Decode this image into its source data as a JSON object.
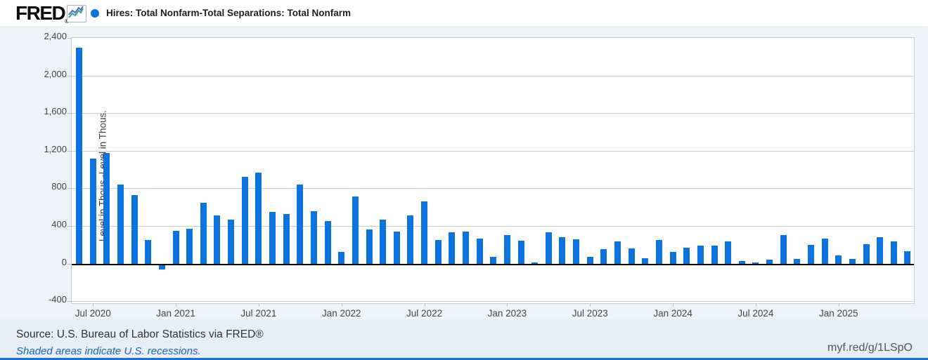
{
  "header": {
    "logo_text": "FRED",
    "registered_mark": "®",
    "legend_label": "Hires: Total Nonfarm-Total Separations: Total Nonfarm"
  },
  "footer": {
    "source_text": "Source: U.S. Bureau of Labor Statistics via FRED®",
    "recessions_note": "Shaded areas indicate U.S. recessions.",
    "short_url": "myf.red/g/1LSpO"
  },
  "colors": {
    "bar": "#0b74e0",
    "legend_dot": "#0b74e0",
    "grid": "#cdcdcd",
    "zero_line": "#000000",
    "plot_border": "#c2cbd8",
    "accent_strip": "#1b70d4",
    "link_blue": "#1565c6"
  },
  "chart_data": {
    "type": "bar",
    "title": "Hires: Total Nonfarm-Total Separations: Total Nonfarm",
    "ylabel": "Level in Thous.-Level in Thous.",
    "xlabel": "",
    "ylim": [
      -420,
      2400
    ],
    "yticks": [
      2400,
      2000,
      1600,
      1200,
      800,
      400,
      0,
      -400
    ],
    "ytick_labels": [
      "2,400",
      "2,000",
      "1,600",
      "1,200",
      "800",
      "400",
      "0",
      "-400"
    ],
    "xtick_labels": [
      "Jul 2020",
      "Jan 2021",
      "Jul 2021",
      "Jan 2022",
      "Jul 2022",
      "Jan 2023",
      "Jul 2023",
      "Jan 2024",
      "Jul 2024",
      "Jan 2025"
    ],
    "grid": true,
    "legend_position": "top-left",
    "x": [
      "Jun 2020",
      "Jul 2020",
      "Aug 2020",
      "Sep 2020",
      "Oct 2020",
      "Nov 2020",
      "Dec 2020",
      "Jan 2021",
      "Feb 2021",
      "Mar 2021",
      "Apr 2021",
      "May 2021",
      "Jun 2021",
      "Jul 2021",
      "Aug 2021",
      "Sep 2021",
      "Oct 2021",
      "Nov 2021",
      "Dec 2021",
      "Jan 2022",
      "Feb 2022",
      "Mar 2022",
      "Apr 2022",
      "May 2022",
      "Jun 2022",
      "Jul 2022",
      "Aug 2022",
      "Sep 2022",
      "Oct 2022",
      "Nov 2022",
      "Dec 2022",
      "Jan 2023",
      "Feb 2023",
      "Mar 2023",
      "Apr 2023",
      "May 2023",
      "Jun 2023",
      "Jul 2023",
      "Aug 2023",
      "Sep 2023",
      "Oct 2023",
      "Nov 2023",
      "Dec 2023",
      "Jan 2024",
      "Feb 2024",
      "Mar 2024",
      "Apr 2024",
      "May 2024",
      "Jun 2024",
      "Jul 2024",
      "Aug 2024",
      "Sep 2024",
      "Oct 2024",
      "Nov 2024",
      "Dec 2024",
      "Jan 2025",
      "Feb 2025",
      "Mar 2025",
      "Apr 2025",
      "May 2025",
      "Jun 2025"
    ],
    "values": [
      2295,
      1120,
      1180,
      840,
      730,
      255,
      -45,
      345,
      370,
      650,
      510,
      470,
      920,
      965,
      550,
      530,
      840,
      555,
      450,
      125,
      715,
      365,
      470,
      340,
      515,
      665,
      255,
      330,
      340,
      265,
      75,
      305,
      245,
      15,
      335,
      280,
      260,
      70,
      155,
      235,
      165,
      55,
      250,
      125,
      170,
      190,
      190,
      235,
      25,
      10,
      45,
      300,
      50,
      200,
      270,
      90,
      50,
      210,
      285,
      235,
      135
    ]
  }
}
